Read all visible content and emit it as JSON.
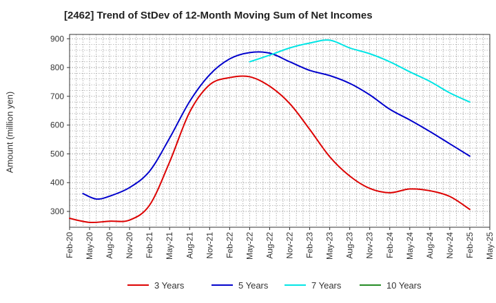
{
  "chart_data": {
    "type": "line",
    "title": "[2462]  Trend of StDev of 12-Month Moving Sum of Net Incomes",
    "ylabel": "Amount (million yen)",
    "xlabel": "",
    "ylim": [
      245,
      915
    ],
    "yticks": [
      300,
      400,
      500,
      600,
      700,
      800,
      900
    ],
    "x_start": "Feb-20",
    "x_end": "May-25",
    "xticks": [
      "Feb-20",
      "May-20",
      "Aug-20",
      "Nov-20",
      "Feb-21",
      "May-21",
      "Aug-21",
      "Nov-21",
      "Feb-22",
      "May-22",
      "Aug-22",
      "Nov-22",
      "Feb-23",
      "May-23",
      "Aug-23",
      "Nov-23",
      "Feb-24",
      "May-24",
      "Aug-24",
      "Nov-24",
      "Feb-25",
      "May-25"
    ],
    "grid": true,
    "legend_position": "bottom",
    "series": [
      {
        "name": "3 Years",
        "color": "#dd0000",
        "points": [
          [
            "Feb-20",
            276
          ],
          [
            "May-20",
            262
          ],
          [
            "Aug-20",
            266
          ],
          [
            "Nov-20",
            270
          ],
          [
            "Feb-21",
            322
          ],
          [
            "May-21",
            472
          ],
          [
            "Aug-21",
            645
          ],
          [
            "Nov-21",
            740
          ],
          [
            "Feb-22",
            765
          ],
          [
            "May-22",
            768
          ],
          [
            "Aug-22",
            735
          ],
          [
            "Nov-22",
            675
          ],
          [
            "Feb-23",
            585
          ],
          [
            "May-23",
            490
          ],
          [
            "Aug-23",
            423
          ],
          [
            "Nov-23",
            380
          ],
          [
            "Feb-24",
            365
          ],
          [
            "May-24",
            378
          ],
          [
            "Aug-24",
            372
          ],
          [
            "Nov-24",
            352
          ],
          [
            "Feb-25",
            307
          ]
        ]
      },
      {
        "name": "5 Years",
        "color": "#0000cc",
        "points": [
          [
            "Apr-20",
            362
          ],
          [
            "Jun-20",
            343
          ],
          [
            "Aug-20",
            353
          ],
          [
            "Nov-20",
            383
          ],
          [
            "Feb-21",
            440
          ],
          [
            "May-21",
            555
          ],
          [
            "Aug-21",
            682
          ],
          [
            "Nov-21",
            775
          ],
          [
            "Feb-22",
            830
          ],
          [
            "May-22",
            852
          ],
          [
            "Aug-22",
            850
          ],
          [
            "Nov-22",
            820
          ],
          [
            "Feb-23",
            790
          ],
          [
            "May-23",
            772
          ],
          [
            "Aug-23",
            745
          ],
          [
            "Nov-23",
            705
          ],
          [
            "Feb-24",
            655
          ],
          [
            "May-24",
            618
          ],
          [
            "Aug-24",
            578
          ],
          [
            "Nov-24",
            535
          ],
          [
            "Feb-25",
            492
          ]
        ]
      },
      {
        "name": "7 Years",
        "color": "#00e5e5",
        "points": [
          [
            "May-22",
            820
          ],
          [
            "Aug-22",
            843
          ],
          [
            "Nov-22",
            868
          ],
          [
            "Feb-23",
            885
          ],
          [
            "May-23",
            895
          ],
          [
            "Aug-23",
            868
          ],
          [
            "Nov-23",
            848
          ],
          [
            "Feb-24",
            820
          ],
          [
            "May-24",
            785
          ],
          [
            "Aug-24",
            752
          ],
          [
            "Nov-24",
            712
          ],
          [
            "Feb-25",
            680
          ]
        ]
      },
      {
        "name": "10 Years",
        "color": "#228B22",
        "points": []
      }
    ]
  }
}
